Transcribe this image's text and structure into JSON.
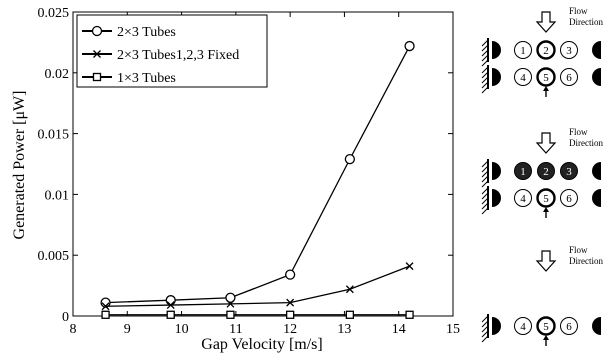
{
  "chart_data": {
    "type": "line",
    "title": "",
    "xlabel": "Gap Velocity [m/s]",
    "ylabel": "Generated Power [μW]",
    "xlim": [
      8,
      15
    ],
    "ylim": [
      0,
      0.025
    ],
    "xticks": [
      "8",
      "9",
      "10",
      "11",
      "12",
      "13",
      "14",
      "15"
    ],
    "yticks": [
      "0",
      "0.005",
      "0.01",
      "0.015",
      "0.02",
      "0.025"
    ],
    "legend_position": "top-left",
    "grid": false,
    "series": [
      {
        "name": "2×3 Tubes",
        "marker": "circle",
        "x": [
          8.6,
          9.8,
          10.9,
          12.0,
          13.1,
          14.2
        ],
        "y": [
          0.0011,
          0.0013,
          0.0015,
          0.0034,
          0.0129,
          0.0222
        ]
      },
      {
        "name": "2×3 Tubes1,2,3 Fixed",
        "marker": "x",
        "x": [
          8.6,
          9.8,
          10.9,
          12.0,
          13.1,
          14.2
        ],
        "y": [
          0.0008,
          0.0009,
          0.001,
          0.0011,
          0.0022,
          0.0041
        ]
      },
      {
        "name": "1×3 Tubes",
        "marker": "square",
        "x": [
          8.6,
          9.8,
          10.9,
          12.0,
          13.1,
          14.2
        ],
        "y": [
          0.0001,
          0.0001,
          0.0001,
          0.0001,
          0.0001,
          0.0001
        ]
      }
    ]
  },
  "diagrams": {
    "flow_label_line1": "Flow",
    "flow_label_line2": "Direction",
    "panels": [
      {
        "top_row": [
          "1",
          "2",
          "3"
        ],
        "top_fixed": false,
        "bottom_row": [
          "4",
          "5",
          "6"
        ],
        "has_top_row": true
      },
      {
        "top_row": [
          "1",
          "2",
          "3"
        ],
        "top_fixed": true,
        "bottom_row": [
          "4",
          "5",
          "6"
        ],
        "has_top_row": true
      },
      {
        "top_row": [],
        "top_fixed": false,
        "bottom_row": [
          "4",
          "5",
          "6"
        ],
        "has_top_row": false
      }
    ]
  }
}
